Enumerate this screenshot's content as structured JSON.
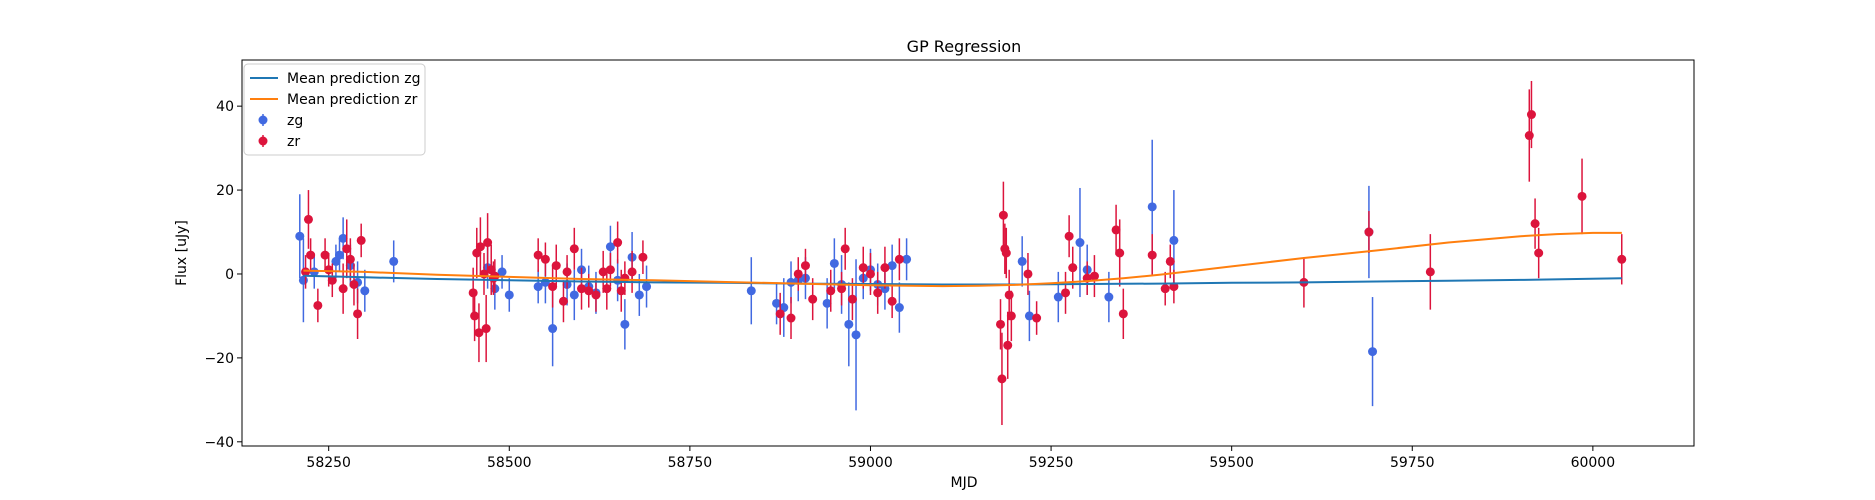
{
  "chart_data": {
    "type": "scatter",
    "title": "GP Regression",
    "xlabel": "MJD",
    "ylabel": "Flux [uJy]",
    "xlim": [
      58130,
      60140
    ],
    "ylim": [
      -41,
      51
    ],
    "x_ticks": [
      58250,
      58500,
      58750,
      59000,
      59250,
      59500,
      59750,
      60000
    ],
    "y_ticks": [
      -40,
      -20,
      0,
      20,
      40
    ],
    "legend_position": "top-left",
    "grid": false,
    "series": [
      {
        "name": "Mean prediction zg",
        "kind": "line",
        "color": "#1f77b4",
        "x": [
          58215,
          58300,
          58400,
          58500,
          58600,
          58700,
          58800,
          58900,
          59000,
          59100,
          59200,
          59300,
          59400,
          59500,
          59600,
          59700,
          59800,
          59900,
          60040
        ],
        "y": [
          -0.4,
          -0.8,
          -1.2,
          -1.5,
          -1.8,
          -2.0,
          -2.1,
          -2.3,
          -2.4,
          -2.5,
          -2.5,
          -2.4,
          -2.3,
          -2.1,
          -2.0,
          -1.8,
          -1.6,
          -1.4,
          -1.0
        ]
      },
      {
        "name": "Mean prediction zr",
        "kind": "line",
        "color": "#ff7f0e",
        "x": [
          58215,
          58300,
          58400,
          58500,
          58600,
          58700,
          58800,
          58900,
          59000,
          59100,
          59150,
          59200,
          59250,
          59300,
          59350,
          59400,
          59450,
          59500,
          59600,
          59700,
          59800,
          59900,
          59950,
          60000,
          60040
        ],
        "y": [
          0.8,
          0.5,
          -0.2,
          -0.7,
          -1.2,
          -1.5,
          -1.9,
          -2.3,
          -2.7,
          -2.9,
          -2.8,
          -2.6,
          -2.2,
          -1.7,
          -1.0,
          -0.2,
          0.8,
          1.8,
          3.8,
          5.6,
          7.5,
          9.0,
          9.5,
          9.8,
          9.8
        ]
      },
      {
        "name": "zg",
        "kind": "errorbar",
        "color": "#4169e1",
        "x": [
          58210,
          58215,
          58230,
          58260,
          58265,
          58270,
          58280,
          58290,
          58300,
          58340,
          58470,
          58480,
          58490,
          58500,
          58540,
          58550,
          58560,
          58580,
          58590,
          58600,
          58610,
          58620,
          58640,
          58650,
          58660,
          58670,
          58680,
          58690,
          58835,
          58870,
          58880,
          58890,
          58900,
          58910,
          58940,
          58950,
          58960,
          58970,
          58980,
          58990,
          59000,
          59010,
          59020,
          59030,
          59040,
          59050,
          59210,
          59220,
          59260,
          59290,
          59300,
          59330,
          59390,
          59420,
          59690,
          59695
        ],
        "y": [
          9.0,
          -1.5,
          0.5,
          3.0,
          4.5,
          8.5,
          2.0,
          -2.0,
          -4.0,
          3.0,
          1.5,
          -3.5,
          0.5,
          -5.0,
          -3.0,
          -2.0,
          -13.0,
          -2.5,
          -5.0,
          1.0,
          -3.0,
          -4.5,
          6.5,
          -1.5,
          -12.0,
          4.0,
          -5.0,
          -3.0,
          -4.0,
          -7.0,
          -8.0,
          -2.0,
          -1.5,
          -1.0,
          -7.0,
          2.5,
          -2.5,
          -12.0,
          -14.5,
          -1.0,
          1.0,
          -2.5,
          -3.5,
          2.0,
          -8.0,
          3.5,
          3.0,
          -10.0,
          -5.5,
          7.5,
          1.0,
          -5.5,
          16.0,
          8.0,
          10.0,
          -18.5
        ],
        "err": [
          10,
          10,
          4,
          4,
          4,
          5,
          5,
          5,
          5,
          5,
          5,
          5,
          4,
          4,
          4,
          5,
          9,
          5,
          6,
          5,
          5,
          5,
          5,
          5,
          6,
          6,
          5,
          5,
          8,
          5,
          7,
          5,
          5,
          5,
          6,
          6,
          7,
          10,
          18,
          5,
          5,
          5,
          5,
          5,
          6,
          5,
          6,
          6,
          6,
          13,
          6,
          6,
          16,
          12,
          11,
          13
        ]
      },
      {
        "name": "zr",
        "kind": "errorbar",
        "color": "#dc143c",
        "x": [
          58218,
          58222,
          58225,
          58235,
          58245,
          58250,
          58255,
          58270,
          58275,
          58280,
          58285,
          58290,
          58295,
          58450,
          58452,
          58455,
          58458,
          58460,
          58465,
          58468,
          58470,
          58475,
          58478,
          58480,
          58540,
          58550,
          58560,
          58565,
          58575,
          58580,
          58590,
          58600,
          58610,
          58620,
          58630,
          58635,
          58640,
          58650,
          58655,
          58660,
          58670,
          58685,
          58875,
          58890,
          58900,
          58910,
          58920,
          58945,
          58960,
          58965,
          58975,
          58990,
          59000,
          59010,
          59020,
          59030,
          59040,
          59180,
          59182,
          59184,
          59186,
          59188,
          59190,
          59192,
          59195,
          59218,
          59230,
          59270,
          59275,
          59280,
          59300,
          59310,
          59340,
          59345,
          59350,
          59390,
          59408,
          59415,
          59420,
          59600,
          59690,
          59775,
          59912,
          59915,
          59920,
          59925,
          59985,
          60040
        ],
        "y": [
          0.5,
          13.0,
          4.5,
          -7.5,
          4.5,
          1.0,
          -1.5,
          -3.5,
          6.0,
          3.5,
          -2.5,
          -9.5,
          8.0,
          -4.5,
          -10.0,
          5.0,
          -14.0,
          6.5,
          0.0,
          -13.0,
          7.5,
          1.0,
          -1.0,
          -0.5,
          4.5,
          3.5,
          -3.0,
          2.0,
          -6.5,
          0.5,
          6.0,
          -3.5,
          -4.0,
          -5.0,
          0.5,
          -3.5,
          1.0,
          7.5,
          -4.0,
          -1.0,
          0.5,
          4.0,
          -9.5,
          -10.5,
          0.0,
          2.0,
          -6.0,
          -4.0,
          -3.5,
          6.0,
          -6.0,
          1.5,
          0.0,
          -4.5,
          1.5,
          -6.5,
          3.5,
          -12.0,
          -25.0,
          14.0,
          6.0,
          5.0,
          -17.0,
          -5.0,
          -10.0,
          0.0,
          -10.5,
          -4.5,
          9.0,
          1.5,
          -1.0,
          -0.5,
          10.5,
          5.0,
          -9.5,
          4.5,
          -3.5,
          3.0,
          -3.0,
          -2.0,
          10.0,
          0.5,
          33.0,
          38.0,
          12.0,
          5.0,
          18.5,
          3.5
        ],
        "err": [
          4,
          7,
          4,
          4,
          4,
          4,
          4,
          6,
          7,
          5,
          5,
          6,
          4,
          6,
          6,
          6,
          7,
          7,
          5,
          8,
          7,
          6,
          4,
          4,
          4,
          4,
          5,
          5,
          5,
          4,
          5,
          5,
          4,
          4,
          5,
          5,
          4,
          5,
          5,
          4,
          5,
          4,
          5,
          5,
          4,
          4,
          5,
          5,
          4,
          5,
          5,
          5,
          5,
          5,
          5,
          4,
          5,
          6,
          11,
          8,
          6,
          6,
          8,
          6,
          6,
          5,
          4,
          5,
          5,
          5,
          4,
          5,
          6,
          8,
          6,
          5,
          4,
          4,
          4,
          6,
          5,
          9,
          11,
          8,
          6,
          6,
          9,
          6
        ]
      }
    ]
  }
}
